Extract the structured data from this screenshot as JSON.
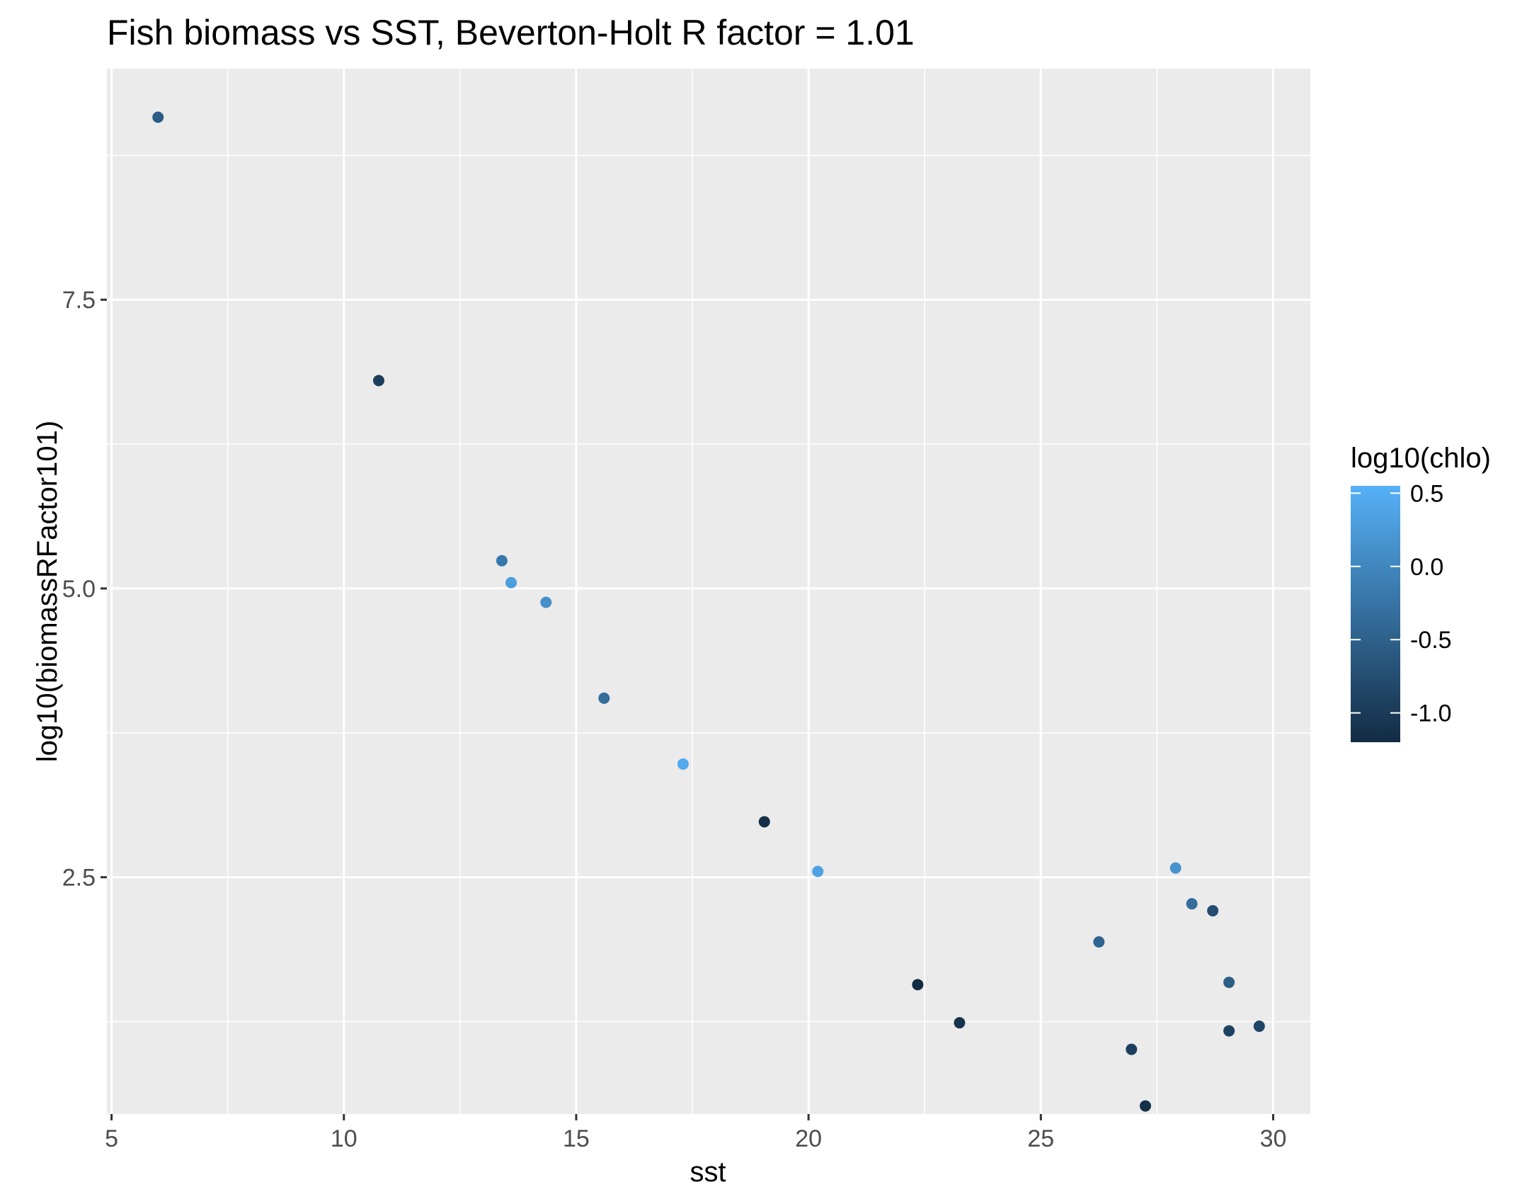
{
  "chart_data": {
    "type": "scatter",
    "title": "Fish biomass vs SST, Beverton-Holt R factor = 1.01",
    "xlabel": "sst",
    "ylabel": "log10(biomassRFactor101)",
    "xlim": [
      4.9,
      30.8
    ],
    "ylim": [
      0.45,
      9.5
    ],
    "x_ticks": [
      5,
      10,
      15,
      20,
      25,
      30
    ],
    "x_tick_labels": [
      "5",
      "10",
      "15",
      "20",
      "25",
      "30"
    ],
    "y_ticks": [
      2.5,
      5.0,
      7.5
    ],
    "y_tick_labels": [
      "2.5",
      "5.0",
      "7.5"
    ],
    "grid": true,
    "color_legend": {
      "title": "log10(chlo)",
      "placement": "right",
      "range": [
        -1.2,
        0.55
      ],
      "ticks": [
        0.5,
        0.0,
        -0.5,
        -1.0
      ],
      "tick_labels": [
        "0.5",
        "0.0",
        "-0.5",
        "-1.0"
      ],
      "low_color": "#132b43",
      "high_color": "#56b1f7"
    },
    "points": [
      {
        "x": 6.0,
        "y": 9.08,
        "color_value": -0.55
      },
      {
        "x": 10.75,
        "y": 6.8,
        "color_value": -0.95
      },
      {
        "x": 13.4,
        "y": 5.24,
        "color_value": -0.2
      },
      {
        "x": 13.6,
        "y": 5.05,
        "color_value": 0.3
      },
      {
        "x": 14.35,
        "y": 4.88,
        "color_value": 0.1
      },
      {
        "x": 15.6,
        "y": 4.05,
        "color_value": -0.35
      },
      {
        "x": 17.3,
        "y": 3.48,
        "color_value": 0.45
      },
      {
        "x": 19.05,
        "y": 2.98,
        "color_value": -1.15
      },
      {
        "x": 20.2,
        "y": 2.55,
        "color_value": 0.35
      },
      {
        "x": 22.35,
        "y": 1.57,
        "color_value": -1.2
      },
      {
        "x": 23.25,
        "y": 1.24,
        "color_value": -1.1
      },
      {
        "x": 26.25,
        "y": 1.94,
        "color_value": -0.45
      },
      {
        "x": 26.95,
        "y": 1.01,
        "color_value": -0.95
      },
      {
        "x": 27.25,
        "y": 0.52,
        "color_value": -1.15
      },
      {
        "x": 27.9,
        "y": 2.58,
        "color_value": 0.15
      },
      {
        "x": 28.25,
        "y": 2.27,
        "color_value": -0.35
      },
      {
        "x": 28.7,
        "y": 2.21,
        "color_value": -0.75
      },
      {
        "x": 29.05,
        "y": 1.59,
        "color_value": -0.55
      },
      {
        "x": 29.05,
        "y": 1.17,
        "color_value": -0.9
      },
      {
        "x": 29.7,
        "y": 1.21,
        "color_value": -0.85
      }
    ]
  }
}
